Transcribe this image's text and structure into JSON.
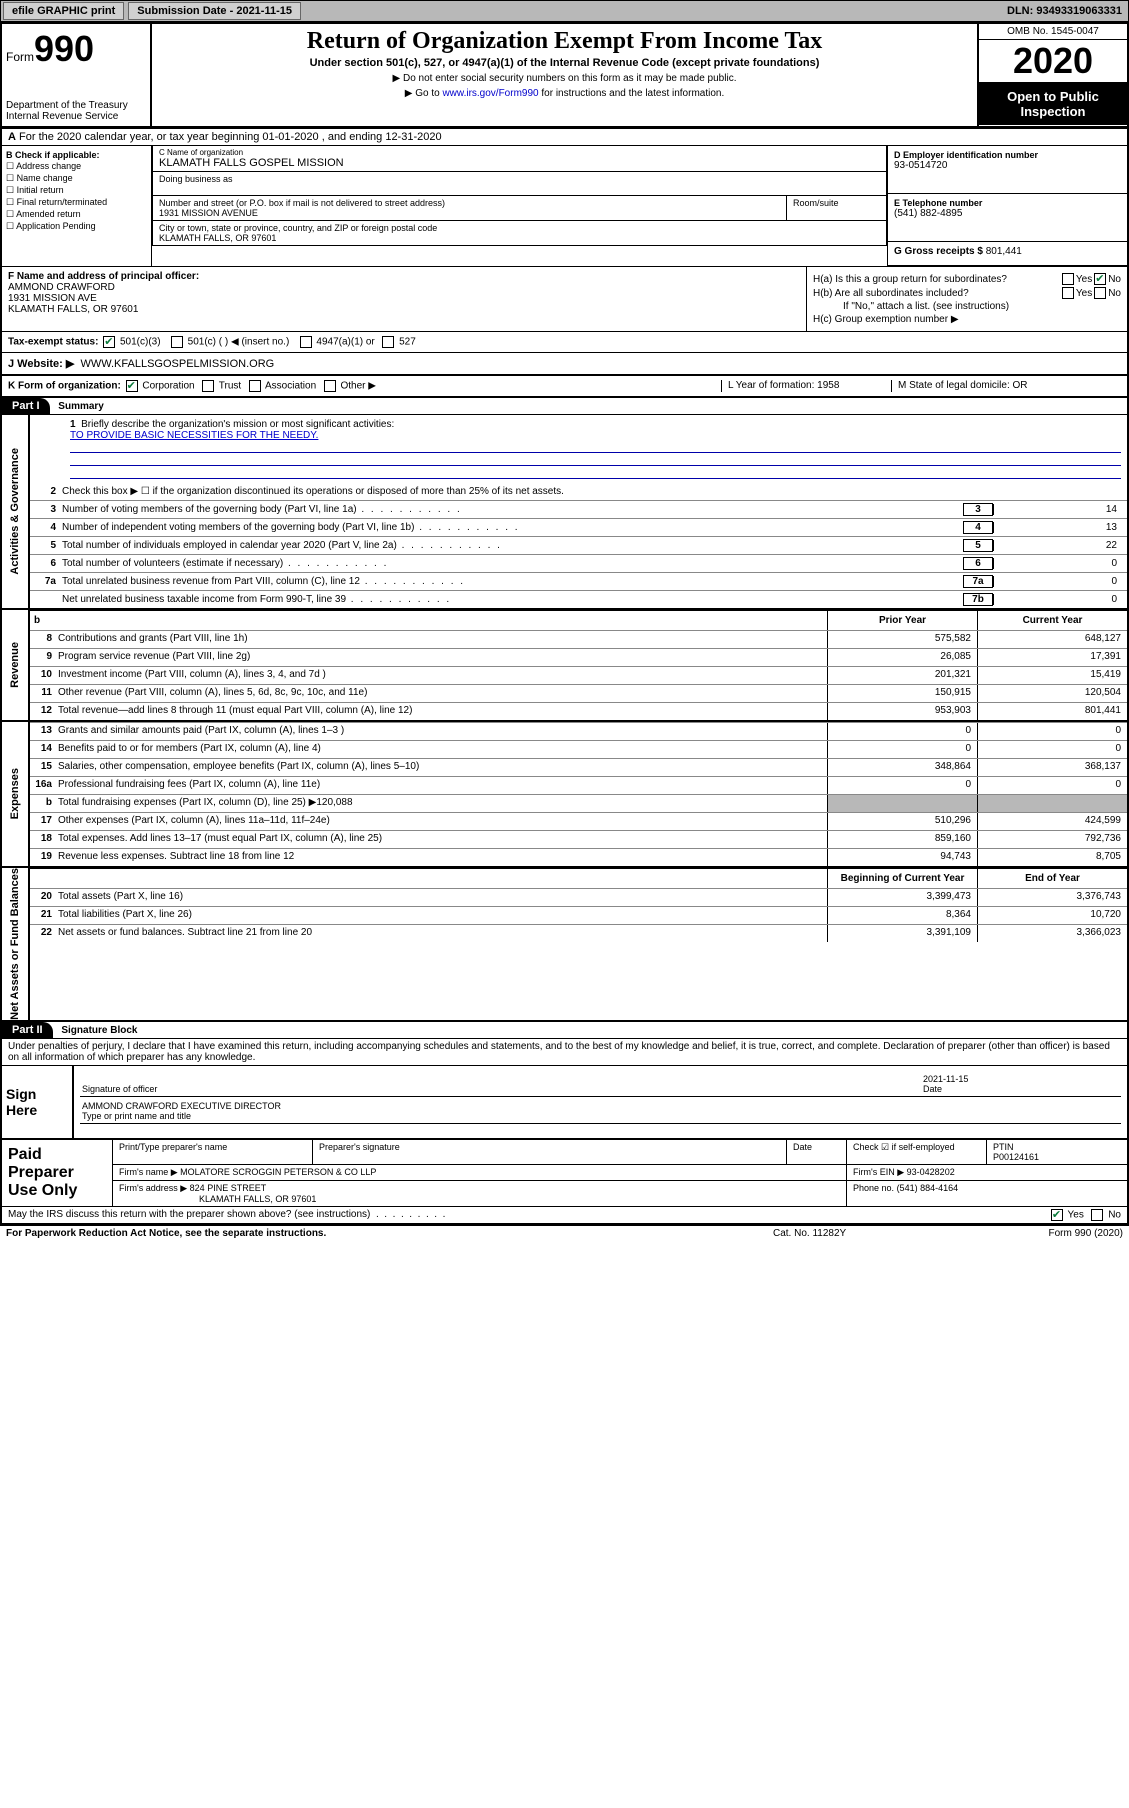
{
  "topbar": {
    "efile": "efile GRAPHIC print",
    "subdate_lbl": "Submission Date - ",
    "subdate": "2021-11-15",
    "dln": "DLN: 93493319063331"
  },
  "header": {
    "form": "Form",
    "formno": "990",
    "dept": "Department of the Treasury\nInternal Revenue Service",
    "title": "Return of Organization Exempt From Income Tax",
    "sub": "Under section 501(c), 527, or 4947(a)(1) of the Internal Revenue Code (except private foundations)",
    "note1": "▶ Do not enter social security numbers on this form as it may be made public.",
    "note2_pre": "▶ Go to ",
    "note2_link": "www.irs.gov/Form990",
    "note2_post": " for instructions and the latest information.",
    "omb": "OMB No. 1545-0047",
    "year": "2020",
    "open": "Open to Public Inspection"
  },
  "A": {
    "text": "For the 2020 calendar year, or tax year beginning 01-01-2020   , and ending 12-31-2020"
  },
  "B": {
    "lbl": "B Check if applicable:",
    "opts": [
      "Address change",
      "Name change",
      "Initial return",
      "Final return/terminated",
      "Amended return",
      "Application Pending"
    ]
  },
  "C": {
    "name_lbl": "C Name of organization",
    "name": "KLAMATH FALLS GOSPEL MISSION",
    "dba_lbl": "Doing business as",
    "street_lbl": "Number and street (or P.O. box if mail is not delivered to street address)",
    "street": "1931 MISSION AVENUE",
    "room_lbl": "Room/suite",
    "city_lbl": "City or town, state or province, country, and ZIP or foreign postal code",
    "city": "KLAMATH FALLS, OR  97601"
  },
  "D": {
    "lbl": "D Employer identification number",
    "val": "93-0514720"
  },
  "E": {
    "lbl": "E Telephone number",
    "val": "(541) 882-4895"
  },
  "G": {
    "lbl": "G Gross receipts $ ",
    "val": "801,441"
  },
  "F": {
    "lbl": "F  Name and address of principal officer:",
    "name": "AMMOND CRAWFORD",
    "addr1": "1931 MISSION AVE",
    "addr2": "KLAMATH FALLS, OR  97601"
  },
  "H": {
    "a": "H(a)  Is this a group return for subordinates?",
    "b": "H(b)  Are all subordinates included?",
    "bnote": "If \"No,\" attach a list. (see instructions)",
    "c": "H(c)  Group exemption number ▶",
    "yes": "Yes",
    "no": "No"
  },
  "I": {
    "lbl": "Tax-exempt status:",
    "opts": [
      "501(c)(3)",
      "501(c) (   ) ◀ (insert no.)",
      "4947(a)(1) or",
      "527"
    ]
  },
  "J": {
    "lbl": "J    Website: ▶",
    "val": "WWW.KFALLSGOSPELMISSION.ORG"
  },
  "K": {
    "lbl": "K Form of organization:",
    "opts": [
      "Corporation",
      "Trust",
      "Association",
      "Other ▶"
    ],
    "L": "L Year of formation: 1958",
    "M": "M State of legal domicile: OR"
  },
  "partI": {
    "bar": "Part I",
    "title": "Summary"
  },
  "gov": {
    "side": "Activities & Governance",
    "l1": "Briefly describe the organization's mission or most significant activities:",
    "l1v": "TO PROVIDE BASIC NECESSITIES FOR THE NEEDY.",
    "l2": "Check this box ▶ ☐  if the organization discontinued its operations or disposed of more than 25% of its net assets.",
    "rows": [
      {
        "n": "3",
        "t": "Number of voting members of the governing body (Part VI, line 1a)",
        "nb": "3",
        "v": "14"
      },
      {
        "n": "4",
        "t": "Number of independent voting members of the governing body (Part VI, line 1b)",
        "nb": "4",
        "v": "13"
      },
      {
        "n": "5",
        "t": "Total number of individuals employed in calendar year 2020 (Part V, line 2a)",
        "nb": "5",
        "v": "22"
      },
      {
        "n": "6",
        "t": "Total number of volunteers (estimate if necessary)",
        "nb": "6",
        "v": "0"
      },
      {
        "n": "7a",
        "t": "Total unrelated business revenue from Part VIII, column (C), line 12",
        "nb": "7a",
        "v": "0"
      },
      {
        "n": "",
        "t": "Net unrelated business taxable income from Form 990-T, line 39",
        "nb": "7b",
        "v": "0"
      }
    ]
  },
  "rev": {
    "side": "Revenue",
    "h1": "b",
    "hc1": "Prior Year",
    "hc2": "Current Year",
    "rows": [
      {
        "n": "8",
        "t": "Contributions and grants (Part VIII, line 1h)",
        "c1": "575,582",
        "c2": "648,127"
      },
      {
        "n": "9",
        "t": "Program service revenue (Part VIII, line 2g)",
        "c1": "26,085",
        "c2": "17,391"
      },
      {
        "n": "10",
        "t": "Investment income (Part VIII, column (A), lines 3, 4, and 7d )",
        "c1": "201,321",
        "c2": "15,419"
      },
      {
        "n": "11",
        "t": "Other revenue (Part VIII, column (A), lines 5, 6d, 8c, 9c, 10c, and 11e)",
        "c1": "150,915",
        "c2": "120,504"
      },
      {
        "n": "12",
        "t": "Total revenue—add lines 8 through 11 (must equal Part VIII, column (A), line 12)",
        "c1": "953,903",
        "c2": "801,441"
      }
    ]
  },
  "exp": {
    "side": "Expenses",
    "rows": [
      {
        "n": "13",
        "t": "Grants and similar amounts paid (Part IX, column (A), lines 1–3 )",
        "c1": "0",
        "c2": "0"
      },
      {
        "n": "14",
        "t": "Benefits paid to or for members (Part IX, column (A), line 4)",
        "c1": "0",
        "c2": "0"
      },
      {
        "n": "15",
        "t": "Salaries, other compensation, employee benefits (Part IX, column (A), lines 5–10)",
        "c1": "348,864",
        "c2": "368,137"
      },
      {
        "n": "16a",
        "t": "Professional fundraising fees (Part IX, column (A), line 11e)",
        "c1": "0",
        "c2": "0"
      },
      {
        "n": "b",
        "t": "Total fundraising expenses (Part IX, column (D), line 25) ▶120,088",
        "grey": true
      },
      {
        "n": "17",
        "t": "Other expenses (Part IX, column (A), lines 11a–11d, 11f–24e)",
        "c1": "510,296",
        "c2": "424,599"
      },
      {
        "n": "18",
        "t": "Total expenses. Add lines 13–17 (must equal Part IX, column (A), line 25)",
        "c1": "859,160",
        "c2": "792,736"
      },
      {
        "n": "19",
        "t": "Revenue less expenses. Subtract line 18 from line 12",
        "c1": "94,743",
        "c2": "8,705"
      }
    ]
  },
  "net": {
    "side": "Net Assets or Fund Balances",
    "hc1": "Beginning of Current Year",
    "hc2": "End of Year",
    "rows": [
      {
        "n": "20",
        "t": "Total assets (Part X, line 16)",
        "c1": "3,399,473",
        "c2": "3,376,743"
      },
      {
        "n": "21",
        "t": "Total liabilities (Part X, line 26)",
        "c1": "8,364",
        "c2": "10,720"
      },
      {
        "n": "22",
        "t": "Net assets or fund balances. Subtract line 21 from line 20",
        "c1": "3,391,109",
        "c2": "3,366,023"
      }
    ]
  },
  "partII": {
    "bar": "Part II",
    "title": "Signature Block"
  },
  "sig": {
    "decl": "Under penalties of perjury, I declare that I have examined this return, including accompanying schedules and statements, and to the best of my knowledge and belief, it is true, correct, and complete. Declaration of preparer (other than officer) is based on all information of which preparer has any knowledge.",
    "here": "Sign Here",
    "sig_lbl": "Signature of officer",
    "date_lbl": "Date",
    "date": "2021-11-15",
    "name": "AMMOND CRAWFORD  EXECUTIVE DIRECTOR",
    "name_lbl": "Type or print name and title"
  },
  "paid": {
    "lbl": "Paid Preparer Use Only",
    "h": [
      "Print/Type preparer's name",
      "Preparer's signature",
      "Date"
    ],
    "check": "Check ☑ if self-employed",
    "ptin_lbl": "PTIN",
    "ptin": "P00124161",
    "firm_lbl": "Firm's name    ▶",
    "firm": "MOLATORE SCROGGIN PETERSON & CO LLP",
    "ein_lbl": "Firm's EIN ▶",
    "ein": "93-0428202",
    "addr_lbl": "Firm's address ▶",
    "addr1": "824 PINE STREET",
    "addr2": "KLAMATH FALLS, OR  97601",
    "phone_lbl": "Phone no.",
    "phone": "(541) 884-4164"
  },
  "irs": {
    "q": "May the IRS discuss this return with the preparer shown above? (see instructions)",
    "yes": "Yes",
    "no": "No"
  },
  "footer": {
    "l": "For Paperwork Reduction Act Notice, see the separate instructions.",
    "m": "Cat. No. 11282Y",
    "r": "Form 990 (2020)"
  }
}
